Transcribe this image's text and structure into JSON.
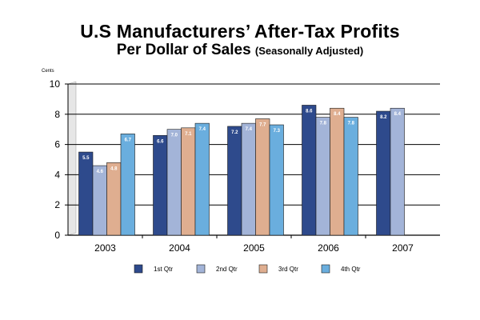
{
  "chart_data": {
    "type": "bar",
    "title": "U.S Manufacturers’ After-Tax Profits",
    "title_line2": "Per Dollar of Sales",
    "subtitle": "(Seasonally Adjusted)",
    "ylabel": "Cents",
    "xlabel": "",
    "ylim": [
      0,
      10
    ],
    "yticks": [
      0,
      2,
      4,
      6,
      8,
      10
    ],
    "grid": true,
    "legend_position": "bottom",
    "categories": [
      "2003",
      "2004",
      "2005",
      "2006",
      "2007"
    ],
    "series": [
      {
        "name": "1st Qtr",
        "color": "#2e4a8c",
        "values": [
          5.5,
          6.6,
          7.2,
          8.6,
          8.2
        ],
        "labels": [
          "5.5",
          "6.6",
          "7.2",
          "8.6",
          "8.2"
        ]
      },
      {
        "name": "2nd Qtr",
        "color": "#a3b4d8",
        "values": [
          4.6,
          7.0,
          7.4,
          7.8,
          8.4
        ],
        "labels": [
          "4.6",
          "7.0",
          "7.4",
          "7.8",
          "8.4"
        ]
      },
      {
        "name": "3rd Qtr",
        "color": "#dfae90",
        "values": [
          4.8,
          7.1,
          7.7,
          8.4,
          null
        ],
        "labels": [
          "4.8",
          "7.1",
          "7.7",
          "8.4",
          null
        ]
      },
      {
        "name": "4th Qtr",
        "color": "#6aaede",
        "values": [
          6.7,
          7.4,
          7.3,
          7.8,
          null
        ],
        "labels": [
          "6.7",
          "7.4",
          "7.3",
          "7.8",
          null
        ]
      }
    ]
  }
}
